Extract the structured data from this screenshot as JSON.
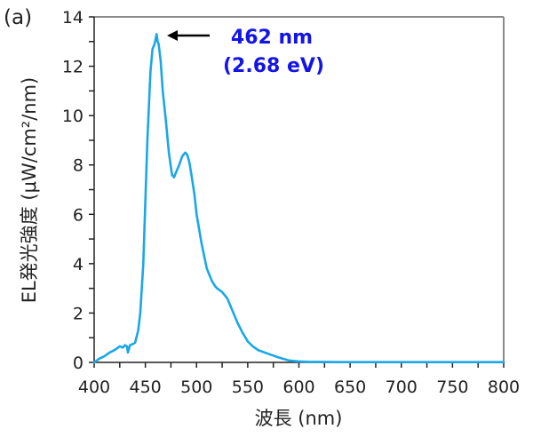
{
  "chart_data": {
    "type": "line",
    "panel_label": "(a)",
    "title": "",
    "xlabel": "波長 (nm)",
    "ylabel": "EL発光強度 (μW/cm²/nm)",
    "xlim": [
      400,
      800
    ],
    "ylim": [
      0,
      14
    ],
    "xticks": [
      400,
      450,
      500,
      550,
      600,
      650,
      700,
      750,
      800
    ],
    "yticks": [
      0,
      2,
      4,
      6,
      8,
      10,
      12,
      14
    ],
    "grid": false,
    "legend": null,
    "series": [
      {
        "name": "EL spectrum",
        "color": "#1aa7e8",
        "x": [
          400,
          405,
          410,
          415,
          420,
          425,
          428,
          430,
          432,
          433,
          435,
          438,
          440,
          443,
          445,
          448,
          450,
          452,
          455,
          457,
          459,
          461,
          462,
          463,
          465,
          467,
          470,
          473,
          476,
          478,
          480,
          483,
          486,
          489,
          491,
          493,
          495,
          498,
          500,
          505,
          510,
          515,
          518,
          520,
          525,
          530,
          535,
          540,
          545,
          550,
          555,
          560,
          570,
          580,
          590,
          600,
          610,
          620,
          640,
          660,
          700,
          750,
          800
        ],
        "values": [
          0.0,
          0.15,
          0.25,
          0.4,
          0.5,
          0.65,
          0.6,
          0.7,
          0.65,
          0.4,
          0.7,
          0.75,
          0.8,
          1.3,
          2.0,
          4.0,
          6.5,
          9.0,
          11.8,
          12.7,
          12.9,
          13.3,
          13.0,
          12.9,
          12.2,
          11.0,
          9.8,
          8.5,
          7.6,
          7.5,
          7.7,
          8.0,
          8.35,
          8.5,
          8.4,
          8.1,
          7.6,
          6.8,
          6.0,
          4.8,
          3.8,
          3.3,
          3.1,
          3.0,
          2.85,
          2.6,
          2.1,
          1.6,
          1.2,
          0.85,
          0.65,
          0.5,
          0.35,
          0.2,
          0.08,
          0.04,
          0.02,
          0.02,
          0.01,
          0.01,
          0.01,
          0.01,
          0.01
        ]
      }
    ],
    "annotations": [
      {
        "text_line1": "462 nm",
        "text_line2": "(2.68 eV)",
        "color": "#1414e6",
        "arrow_color": "#000000",
        "points_to": {
          "x": 462,
          "y": 13.3
        }
      }
    ]
  }
}
